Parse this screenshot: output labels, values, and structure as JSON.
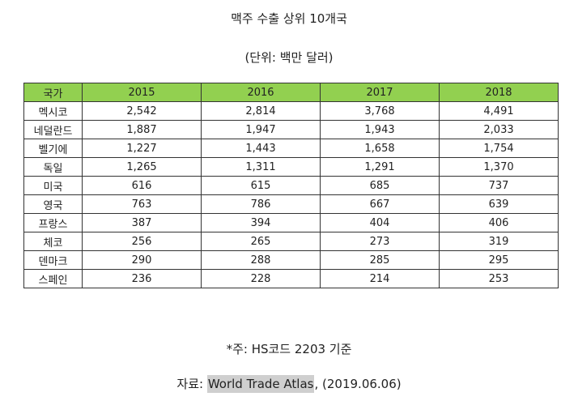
{
  "title": "맥주 수출 상위 10개국",
  "unit": "(단위: 백만 달러)",
  "table": {
    "headers": [
      "국가",
      "2015",
      "2016",
      "2017",
      "2018"
    ],
    "rows": [
      [
        "멕시코",
        "2,542",
        "2,814",
        "3,768",
        "4,491"
      ],
      [
        "네덜란드",
        "1,887",
        "1,947",
        "1,943",
        "2,033"
      ],
      [
        "벨기에",
        "1,227",
        "1,443",
        "1,658",
        "1,754"
      ],
      [
        "독일",
        "1,265",
        "1,311",
        "1,291",
        "1,370"
      ],
      [
        "미국",
        "616",
        "615",
        "685",
        "737"
      ],
      [
        "영국",
        "763",
        "786",
        "667",
        "639"
      ],
      [
        "프랑스",
        "387",
        "394",
        "404",
        "406"
      ],
      [
        "체코",
        "256",
        "265",
        "273",
        "319"
      ],
      [
        "덴마크",
        "290",
        "288",
        "285",
        "295"
      ],
      [
        "스페인",
        "236",
        "228",
        "214",
        "253"
      ]
    ]
  },
  "note": "*주: HS코드 2203 기준",
  "source": {
    "prefix": "자료: ",
    "name": "World Trade Atlas",
    "suffix": ", (2019.06.06)"
  },
  "colors": {
    "header_background": "#92d050",
    "highlight_background": "#cfcfcf"
  }
}
